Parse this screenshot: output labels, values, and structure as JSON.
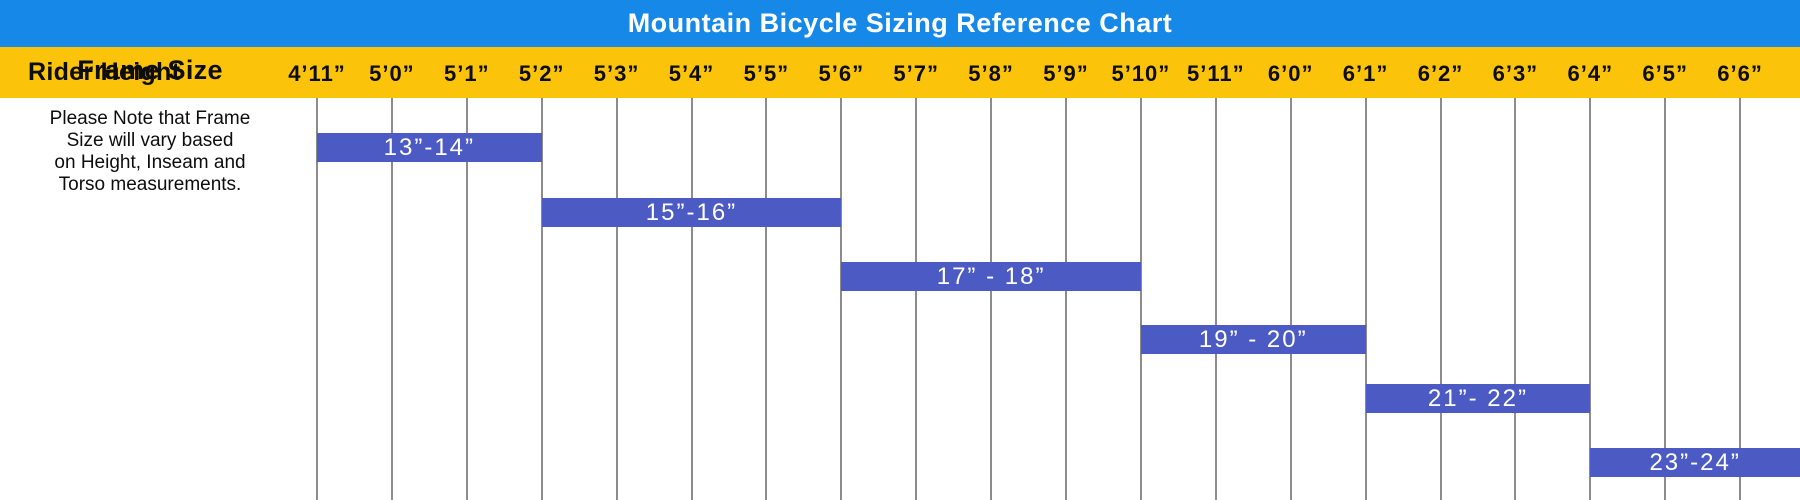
{
  "title": "Mountain Bicycle Sizing Reference Chart",
  "axis": {
    "label": "Rider Height",
    "heights": [
      "4’11”",
      "5’0”",
      "5’1”",
      "5’2”",
      "5’3”",
      "5’4”",
      "5’5”",
      "5’6”",
      "5’7”",
      "5’8”",
      "5’9”",
      "5’10”",
      "5’11”",
      "6’0”",
      "6’1”",
      "6’2”",
      "6’3”",
      "6’4”",
      "6’5”",
      "6’6”"
    ]
  },
  "sidebar": {
    "heading": "Frame Size",
    "note_lines": [
      "Please Note that Frame",
      "Size will vary based",
      "on Height, Inseam and",
      "Torso measurements."
    ]
  },
  "colors": {
    "header_bg": "#1688E8",
    "axis_bg": "#FCC30B",
    "bar": "#4C5BC4",
    "bar_text": "#FFFFFF",
    "gridline": "#8C8C8C",
    "text": "#0D0D0D"
  },
  "chart_data": {
    "type": "bar",
    "subtype": "horizontal-range-gantt",
    "title": "Mountain Bicycle Sizing Reference Chart",
    "xlabel": "Rider Height",
    "ylabel": "Frame Size",
    "x_categories": [
      "4’11”",
      "5’0”",
      "5’1”",
      "5’2”",
      "5’3”",
      "5’4”",
      "5’5”",
      "5’6”",
      "5’7”",
      "5’8”",
      "5’9”",
      "5’10”",
      "5’11”",
      "6’0”",
      "6’1”",
      "6’2”",
      "6’3”",
      "6’4”",
      "6’5”",
      "6’6”"
    ],
    "grid": true,
    "bars": [
      {
        "label": "13”-14”",
        "frame_size_inches": [
          13,
          14
        ],
        "start_height": "4’11”",
        "end_height": "5’2”",
        "extends_past_axis": false
      },
      {
        "label": "15”-16”",
        "frame_size_inches": [
          15,
          16
        ],
        "start_height": "5’2”",
        "end_height": "5’6”",
        "extends_past_axis": false
      },
      {
        "label": "17” - 18”",
        "frame_size_inches": [
          17,
          18
        ],
        "start_height": "5’6”",
        "end_height": "5’10”",
        "extends_past_axis": false
      },
      {
        "label": "19” - 20”",
        "frame_size_inches": [
          19,
          20
        ],
        "start_height": "5’10”",
        "end_height": "6’1”",
        "extends_past_axis": false
      },
      {
        "label": "21”- 22”",
        "frame_size_inches": [
          21,
          22
        ],
        "start_height": "6’1”",
        "end_height": "6’4”",
        "extends_past_axis": false
      },
      {
        "label": "23”-24”",
        "frame_size_inches": [
          23,
          24
        ],
        "start_height": "6’4”",
        "end_height": null,
        "extends_past_axis": true
      }
    ]
  }
}
